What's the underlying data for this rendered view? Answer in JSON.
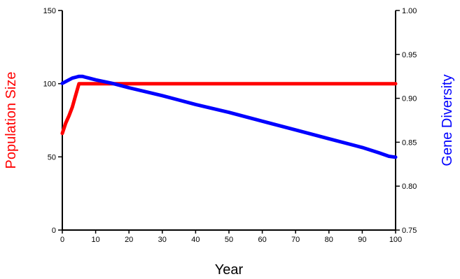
{
  "chart_data": {
    "type": "line",
    "title": "",
    "xlabel": "Year",
    "ylabel_left": "Population Size",
    "ylabel_right": "Gene Diversity",
    "xlim": [
      0,
      100
    ],
    "ylim_left": [
      0,
      150
    ],
    "ylim_right": [
      0.75,
      1.0
    ],
    "x_ticks": [
      "0",
      "10",
      "20",
      "30",
      "40",
      "50",
      "60",
      "70",
      "80",
      "90",
      "100"
    ],
    "y_left_ticks": [
      "0",
      "50",
      "100",
      "150"
    ],
    "y_right_ticks": [
      "0.75",
      "0.80",
      "0.85",
      "0.90",
      "0.95",
      "1.00"
    ],
    "grid": false,
    "colors": {
      "population": "#ff0000",
      "diversity": "#0000ff",
      "ylabel_left": "#ff0000",
      "ylabel_right": "#0000ff",
      "axes": "#000000"
    },
    "series": [
      {
        "axis": "left",
        "color": "#ff0000",
        "points": [
          [
            0,
            66
          ],
          [
            1,
            73
          ],
          [
            2,
            78
          ],
          [
            3,
            84
          ],
          [
            4,
            92
          ],
          [
            5,
            100
          ],
          [
            6,
            100
          ],
          [
            10,
            100
          ],
          [
            20,
            100
          ],
          [
            30,
            100
          ],
          [
            40,
            100
          ],
          [
            50,
            100
          ],
          [
            60,
            100
          ],
          [
            70,
            100
          ],
          [
            80,
            100
          ],
          [
            90,
            100
          ],
          [
            100,
            100
          ]
        ]
      },
      {
        "axis": "right",
        "color": "#0000ff",
        "points": [
          [
            0,
            0.917
          ],
          [
            1,
            0.919
          ],
          [
            2,
            0.921
          ],
          [
            3,
            0.923
          ],
          [
            4,
            0.924
          ],
          [
            5,
            0.925
          ],
          [
            6,
            0.925
          ],
          [
            7,
            0.924
          ],
          [
            8,
            0.923
          ],
          [
            10,
            0.921
          ],
          [
            15,
            0.917
          ],
          [
            20,
            0.912
          ],
          [
            30,
            0.903
          ],
          [
            40,
            0.893
          ],
          [
            50,
            0.884
          ],
          [
            60,
            0.874
          ],
          [
            70,
            0.864
          ],
          [
            80,
            0.854
          ],
          [
            90,
            0.844
          ],
          [
            95,
            0.838
          ],
          [
            98,
            0.834
          ],
          [
            100,
            0.833
          ]
        ]
      }
    ]
  }
}
